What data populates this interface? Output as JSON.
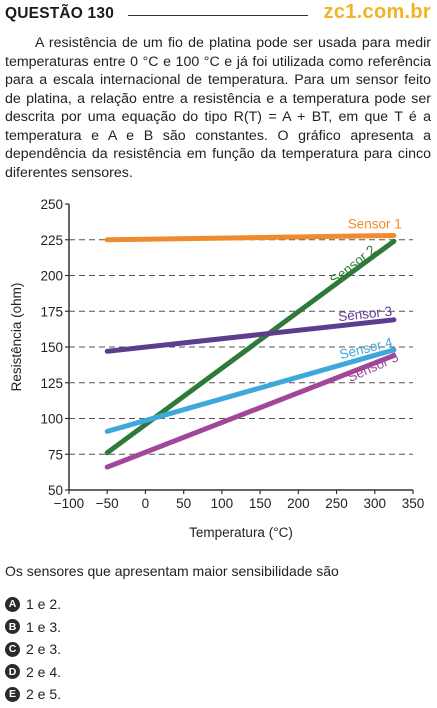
{
  "header": {
    "question_label": "QUESTÃO 130",
    "brand": "zc1.com.br"
  },
  "prompt": {
    "paragraph": "A resistência de um fio de platina pode ser usada para medir temperaturas entre 0 °C e 100 °C e já foi utilizada como referência para a escala internacional de temperatura. Para um sensor feito de platina, a relação entre a resistência e a temperatura pode ser descrita por uma equação do tipo R(T) = A + BT, em que T é a temperatura e A e B são constantes. O gráfico apresenta a dependência da resistência em função da temperatura para cinco diferentes sensores."
  },
  "chart_data": {
    "type": "line",
    "xlabel": "Temperatura (°C)",
    "ylabel": "Resistência (ohm)",
    "xlim": [
      -100,
      350
    ],
    "ylim": [
      50,
      250
    ],
    "x_ticks": [
      -100,
      -50,
      0,
      50,
      100,
      150,
      200,
      250,
      300,
      350
    ],
    "y_ticks": [
      50,
      75,
      100,
      125,
      150,
      175,
      200,
      225,
      250
    ],
    "x_tick_labels": [
      "−100",
      "−50",
      "0",
      "50",
      "100",
      "150",
      "200",
      "250",
      "300",
      "350"
    ],
    "grid": "dashed horizontal",
    "series": [
      {
        "name": "Sensor 1",
        "color": "#ef8b2c",
        "x": [
          -50,
          325
        ],
        "y": [
          225,
          228
        ]
      },
      {
        "name": "Sensor 2",
        "color": "#2f7a3a",
        "x": [
          -50,
          325
        ],
        "y": [
          76,
          224
        ]
      },
      {
        "name": "Sensor 3",
        "color": "#5e3d8f",
        "x": [
          -50,
          325
        ],
        "y": [
          147,
          169
        ]
      },
      {
        "name": "Sensor 4",
        "color": "#3ea8dc",
        "x": [
          -50,
          325
        ],
        "y": [
          91,
          148
        ]
      },
      {
        "name": "Sensor 5",
        "color": "#a0479b",
        "x": [
          -50,
          325
        ],
        "y": [
          66,
          144
        ]
      }
    ]
  },
  "question": {
    "text": "Os sensores que apresentam maior sensibilidade são"
  },
  "options": [
    {
      "letter": "A",
      "text": "1 e 2."
    },
    {
      "letter": "B",
      "text": "1 e 3."
    },
    {
      "letter": "C",
      "text": "2 e 3."
    },
    {
      "letter": "D",
      "text": "2 e 4."
    },
    {
      "letter": "E",
      "text": "2 e 5."
    }
  ]
}
